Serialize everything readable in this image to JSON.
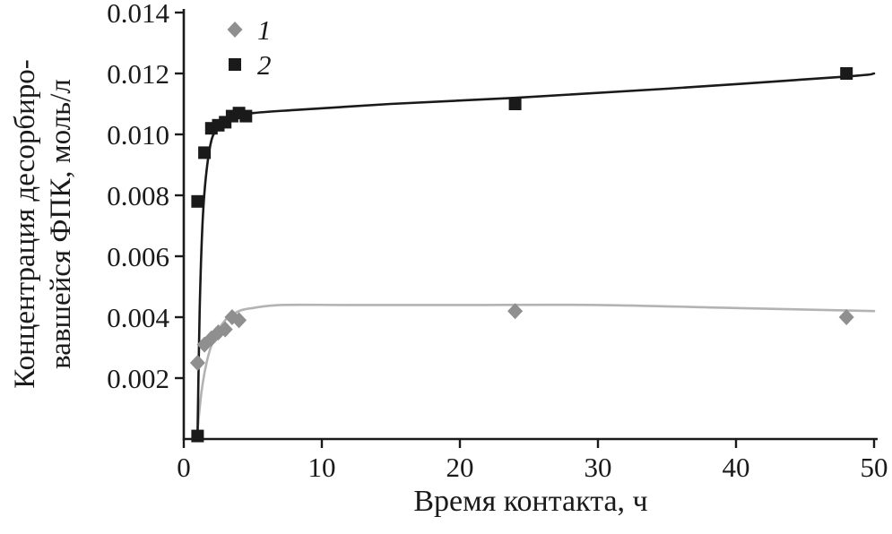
{
  "figure": {
    "background": "#ffffff",
    "axis_color": "#1a1a1a"
  },
  "chart_data": {
    "type": "scatter",
    "title": "",
    "xlabel": "Время контакта, ч",
    "ylabel_line1": "Концентрация десорбиро-",
    "ylabel_line2": "вавшейся ФПК, моль/л",
    "xlim": [
      0,
      50
    ],
    "ylim": [
      0,
      0.014
    ],
    "x_ticks": [
      0,
      10,
      20,
      30,
      40,
      50
    ],
    "y_ticks": [
      0.002,
      0.004,
      0.006,
      0.008,
      0.01,
      0.012,
      0.014
    ],
    "y_tick_labels": [
      "0.002",
      "0.004",
      "0.006",
      "0.008",
      "0.010",
      "0.012",
      "0.014"
    ],
    "grid": false,
    "legend_position": "top-left-inside",
    "series": [
      {
        "name": "1",
        "marker": "diamond",
        "marker_color": "#8f8f8f",
        "line_color": "#b3b3b3",
        "points": [
          [
            1,
            0.0025
          ],
          [
            1.5,
            0.0031
          ],
          [
            2,
            0.0033
          ],
          [
            2.5,
            0.0035
          ],
          [
            3,
            0.0036
          ],
          [
            3.5,
            0.004
          ],
          [
            4,
            0.0039
          ],
          [
            24,
            0.0042
          ],
          [
            48,
            0.004
          ]
        ],
        "trend": [
          [
            1,
            0.0003
          ],
          [
            1.3,
            0.0016
          ],
          [
            1.7,
            0.0026
          ],
          [
            2.2,
            0.0033
          ],
          [
            3,
            0.0039
          ],
          [
            4,
            0.0042
          ],
          [
            5,
            0.0043
          ],
          [
            7,
            0.0044
          ],
          [
            12,
            0.0044
          ],
          [
            20,
            0.0044
          ],
          [
            30,
            0.0044
          ],
          [
            40,
            0.0043
          ],
          [
            50,
            0.0042
          ]
        ]
      },
      {
        "name": "2",
        "marker": "square",
        "marker_color": "#1a1a1a",
        "line_color": "#1a1a1a",
        "points": [
          [
            1,
            0.0001
          ],
          [
            1,
            0.0078
          ],
          [
            1.5,
            0.0094
          ],
          [
            2,
            0.0102
          ],
          [
            2.5,
            0.0103
          ],
          [
            3,
            0.0104
          ],
          [
            3.5,
            0.0106
          ],
          [
            4,
            0.0107
          ],
          [
            4.5,
            0.0106
          ],
          [
            24,
            0.011
          ],
          [
            48,
            0.012
          ]
        ],
        "trend": [
          [
            1,
            0.0002
          ],
          [
            1.15,
            0.0042
          ],
          [
            1.35,
            0.007
          ],
          [
            1.6,
            0.0086
          ],
          [
            2,
            0.0098
          ],
          [
            2.5,
            0.0102
          ],
          [
            3,
            0.0104
          ],
          [
            4,
            0.0106
          ],
          [
            5,
            0.0107
          ],
          [
            8,
            0.0108
          ],
          [
            15,
            0.011
          ],
          [
            24,
            0.0112
          ],
          [
            35,
            0.0115
          ],
          [
            48,
            0.0119
          ],
          [
            50,
            0.012
          ]
        ]
      }
    ]
  }
}
